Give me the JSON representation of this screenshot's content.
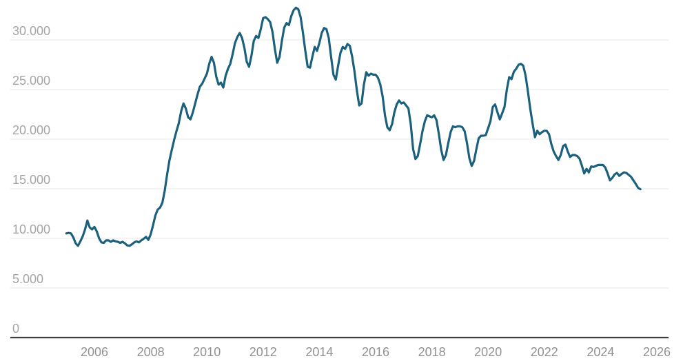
{
  "chart_data": {
    "type": "line",
    "title": "",
    "xlabel": "",
    "ylabel": "",
    "legend": "none",
    "grid": "horizontal",
    "line_color": "#1b607c",
    "background_color": "#ffffff",
    "y_axis": {
      "ticks": [
        0,
        5000,
        10000,
        15000,
        20000,
        25000,
        30000
      ],
      "tick_labels": [
        "0",
        "5.000",
        "10.000",
        "15.000",
        "20.000",
        "25.000",
        "30.000"
      ],
      "range": [
        0,
        33600
      ]
    },
    "x_axis": {
      "ticks": [
        2006,
        2008,
        2010,
        2012,
        2014,
        2016,
        2018,
        2020,
        2022,
        2024,
        2026
      ],
      "tick_labels": [
        "2006",
        "2008",
        "2010",
        "2012",
        "2014",
        "2016",
        "2018",
        "2020",
        "2022",
        "2024",
        "2026"
      ],
      "range": [
        2003.0,
        2026.45
      ]
    },
    "series": [
      {
        "name": "value",
        "frequency": "monthly",
        "start_year": 2005,
        "start_month": 1,
        "values": [
          10500,
          10550,
          10500,
          10100,
          9500,
          9250,
          9700,
          10200,
          10900,
          11800,
          11100,
          10900,
          11150,
          10700,
          10000,
          9600,
          9550,
          9800,
          9800,
          9650,
          9800,
          9700,
          9650,
          9550,
          9650,
          9500,
          9300,
          9250,
          9400,
          9600,
          9700,
          9600,
          9800,
          9950,
          10150,
          9850,
          10400,
          11300,
          12300,
          12900,
          13100,
          13600,
          14800,
          16400,
          17850,
          18900,
          19900,
          20800,
          21600,
          22800,
          23600,
          23100,
          22200,
          22000,
          22700,
          23600,
          24500,
          25300,
          25600,
          26100,
          26600,
          27600,
          28300,
          27700,
          26300,
          25500,
          25700,
          25200,
          26400,
          27100,
          27600,
          28600,
          29700,
          30300,
          30700,
          30200,
          29200,
          27800,
          27300,
          28400,
          29900,
          30400,
          30200,
          31100,
          32200,
          32300,
          32100,
          31800,
          30800,
          29100,
          27700,
          28300,
          29900,
          31250,
          31700,
          31500,
          32400,
          33000,
          33250,
          33100,
          32300,
          30700,
          28900,
          27300,
          27200,
          28300,
          29300,
          28900,
          29700,
          30700,
          31200,
          31100,
          30200,
          28300,
          26500,
          26000,
          27400,
          28700,
          29300,
          29100,
          29600,
          29400,
          28300,
          26800,
          24900,
          23400,
          23600,
          25500,
          26750,
          26400,
          26600,
          26500,
          26500,
          26200,
          25500,
          24300,
          22400,
          21200,
          20900,
          21500,
          22700,
          23500,
          23900,
          23600,
          23700,
          23400,
          23100,
          21500,
          19000,
          18000,
          18300,
          19500,
          20800,
          21800,
          22400,
          22300,
          22200,
          22400,
          21900,
          20500,
          18900,
          17900,
          18400,
          19600,
          20700,
          21300,
          21200,
          21300,
          21300,
          21200,
          20800,
          19600,
          18100,
          17300,
          17800,
          19000,
          20100,
          20350,
          20350,
          20400,
          21100,
          21800,
          23250,
          23500,
          22700,
          22000,
          22600,
          23250,
          25000,
          26250,
          26050,
          26800,
          27100,
          27500,
          27600,
          27400,
          26400,
          24800,
          23050,
          21550,
          20200,
          20850,
          20500,
          20700,
          20850,
          20850,
          20500,
          19500,
          18750,
          18300,
          17900,
          18400,
          19300,
          19450,
          18750,
          18200,
          18400,
          18400,
          18300,
          18050,
          17350,
          16550,
          17000,
          16650,
          17250,
          17200,
          17300,
          17400,
          17400,
          17400,
          17150,
          16550,
          15850,
          16100,
          16450,
          16600,
          16300,
          16500,
          16650,
          16600,
          16400,
          16200,
          15850,
          15500,
          15100,
          14950
        ]
      }
    ]
  }
}
